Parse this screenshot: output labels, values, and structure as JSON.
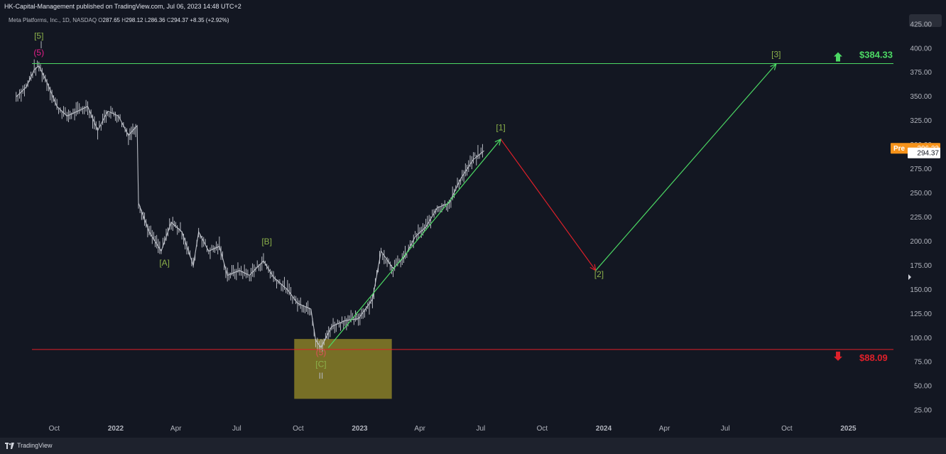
{
  "header": {
    "published": "HK-Capital-Management published on TradingView.com, Jul 06, 2023 14:48 UTC+2"
  },
  "legend": {
    "symbol": "Meta Platforms, Inc., 1D, NASDAQ",
    "o_label": "O",
    "o": "287.65",
    "h_label": "H",
    "h": "298.12",
    "l_label": "L",
    "l": "286.36",
    "c_label": "C",
    "c": "294.37",
    "change": "+8.35 (+2.92%)"
  },
  "footer": {
    "brand": "TradingView"
  },
  "colors": {
    "background": "#131722",
    "bullish": "#4cd964",
    "bearish": "#e0202a",
    "wave_label": "#8bb04a",
    "price": "#c9ccd4",
    "pre_badge": "#f7931a"
  },
  "chart_data": {
    "type": "line",
    "y_axis": {
      "range": [
        10,
        437
      ],
      "ticks": [
        "425.00",
        "400.00",
        "375.00",
        "350.00",
        "325.00",
        "300.00",
        "275.00",
        "250.00",
        "225.00",
        "200.00",
        "175.00",
        "150.00",
        "125.00",
        "100.00",
        "75.00",
        "50.00",
        "25.00"
      ]
    },
    "x_axis": {
      "ticks": [
        "Oct",
        "2022",
        "Apr",
        "Jul",
        "Oct",
        "2023",
        "Apr",
        "Jul",
        "Oct",
        "2024",
        "Apr",
        "Jul",
        "Oct",
        "2025"
      ]
    },
    "price_badges": {
      "pre_label": "Pre",
      "pre_value": "296.23",
      "last_value": "294.37"
    },
    "levels": [
      {
        "label": "$384.33",
        "value": 384.33,
        "kind": "target"
      },
      {
        "label": "$88.09",
        "value": 88.09,
        "kind": "stop"
      }
    ],
    "wave_labels": [
      {
        "text": "[5]",
        "x": "2021-09-08",
        "y": 410
      },
      {
        "text": "(5)",
        "x": "2021-09-08",
        "y": 393
      },
      {
        "text": "[A]",
        "x": "2022-03-15",
        "y": 175
      },
      {
        "text": "[B]",
        "x": "2022-08-15",
        "y": 197
      },
      {
        "text": "(5)",
        "x": "2022-11-04",
        "y": 82
      },
      {
        "text": "[C]",
        "x": "2022-11-04",
        "y": 70
      },
      {
        "text": "II",
        "x": "2022-11-04",
        "y": 58
      },
      {
        "text": "[1]",
        "x": "2023-07-31",
        "y": 315
      },
      {
        "text": "[2]",
        "x": "2023-12-25",
        "y": 163
      },
      {
        "text": "[3]",
        "x": "2024-09-15",
        "y": 391
      }
    ],
    "projection": [
      {
        "x": "2022-11-15",
        "y": 90,
        "x2": "2023-07-31",
        "y2": 306,
        "dir": "up"
      },
      {
        "x": "2023-07-31",
        "y": 306,
        "x2": "2023-12-20",
        "y2": 170,
        "dir": "down"
      },
      {
        "x": "2023-12-20",
        "y": 170,
        "x2": "2024-09-15",
        "y2": 384,
        "dir": "up"
      }
    ],
    "zone": {
      "x1": "2022-09-25",
      "x2": "2023-02-18",
      "y1": 37,
      "y2": 99
    },
    "price_series": [
      {
        "x": "2021-08-05",
        "y": 350
      },
      {
        "x": "2021-08-20",
        "y": 360
      },
      {
        "x": "2021-09-01",
        "y": 378
      },
      {
        "x": "2021-09-08",
        "y": 382
      },
      {
        "x": "2021-09-20",
        "y": 365
      },
      {
        "x": "2021-10-05",
        "y": 340
      },
      {
        "x": "2021-10-20",
        "y": 330
      },
      {
        "x": "2021-11-05",
        "y": 335
      },
      {
        "x": "2021-11-20",
        "y": 340
      },
      {
        "x": "2021-12-05",
        "y": 315
      },
      {
        "x": "2021-12-20",
        "y": 335
      },
      {
        "x": "2022-01-05",
        "y": 330
      },
      {
        "x": "2022-01-20",
        "y": 310
      },
      {
        "x": "2022-02-02",
        "y": 320
      },
      {
        "x": "2022-02-04",
        "y": 240
      },
      {
        "x": "2022-02-20",
        "y": 210
      },
      {
        "x": "2022-03-10",
        "y": 190
      },
      {
        "x": "2022-03-25",
        "y": 220
      },
      {
        "x": "2022-04-10",
        "y": 210
      },
      {
        "x": "2022-04-27",
        "y": 175
      },
      {
        "x": "2022-05-05",
        "y": 210
      },
      {
        "x": "2022-05-20",
        "y": 190
      },
      {
        "x": "2022-06-05",
        "y": 195
      },
      {
        "x": "2022-06-17",
        "y": 165
      },
      {
        "x": "2022-07-05",
        "y": 170
      },
      {
        "x": "2022-07-20",
        "y": 165
      },
      {
        "x": "2022-08-10",
        "y": 180
      },
      {
        "x": "2022-08-25",
        "y": 163
      },
      {
        "x": "2022-09-15",
        "y": 150
      },
      {
        "x": "2022-09-30",
        "y": 136
      },
      {
        "x": "2022-10-20",
        "y": 130
      },
      {
        "x": "2022-10-27",
        "y": 98
      },
      {
        "x": "2022-11-04",
        "y": 90
      },
      {
        "x": "2022-11-20",
        "y": 112
      },
      {
        "x": "2022-12-10",
        "y": 118
      },
      {
        "x": "2022-12-30",
        "y": 120
      },
      {
        "x": "2023-01-20",
        "y": 140
      },
      {
        "x": "2023-02-02",
        "y": 190
      },
      {
        "x": "2023-02-20",
        "y": 172
      },
      {
        "x": "2023-03-10",
        "y": 185
      },
      {
        "x": "2023-03-25",
        "y": 205
      },
      {
        "x": "2023-04-10",
        "y": 215
      },
      {
        "x": "2023-04-27",
        "y": 235
      },
      {
        "x": "2023-05-15",
        "y": 240
      },
      {
        "x": "2023-06-01",
        "y": 265
      },
      {
        "x": "2023-06-20",
        "y": 285
      },
      {
        "x": "2023-07-06",
        "y": 294
      }
    ]
  }
}
